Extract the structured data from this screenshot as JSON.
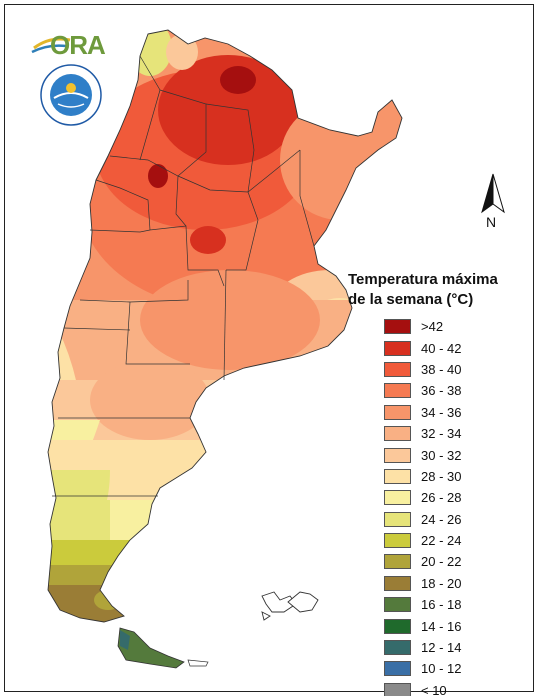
{
  "logo": {
    "text": "ORA"
  },
  "seal": {
    "text": "SERVICIO METEOROLOGICO NACIONAL · ARGENTINA"
  },
  "north": {
    "label": "N"
  },
  "legend": {
    "title_line1": "Temperatura máxima",
    "title_line2": "de la semana (°C)",
    "items": [
      {
        "label": ">42",
        "color": "#a50f0f"
      },
      {
        "label": "40 - 42",
        "color": "#d7301f"
      },
      {
        "label": "38 - 40",
        "color": "#f05a3a"
      },
      {
        "label": "36 - 38",
        "color": "#f57a52"
      },
      {
        "label": "34 - 36",
        "color": "#f7956a"
      },
      {
        "label": "32 - 34",
        "color": "#f9b084"
      },
      {
        "label": "30 - 32",
        "color": "#fbc89a"
      },
      {
        "label": "28 - 30",
        "color": "#fde1a6"
      },
      {
        "label": "26 - 28",
        "color": "#f8f0a0"
      },
      {
        "label": "24 - 26",
        "color": "#e6e47a"
      },
      {
        "label": "22 - 24",
        "color": "#cbcb3c"
      },
      {
        "label": "20 - 22",
        "color": "#b0a43a"
      },
      {
        "label": "18 - 20",
        "color": "#9a7d36"
      },
      {
        "label": "16 - 18",
        "color": "#547a3c"
      },
      {
        "label": "14 - 16",
        "color": "#1f6a2c"
      },
      {
        "label": "12 - 14",
        "color": "#356b6b"
      },
      {
        "label": "10 - 12",
        "color": "#3a6fa6"
      },
      {
        "label": "< 10",
        "color": "#8a8a8a"
      }
    ]
  }
}
